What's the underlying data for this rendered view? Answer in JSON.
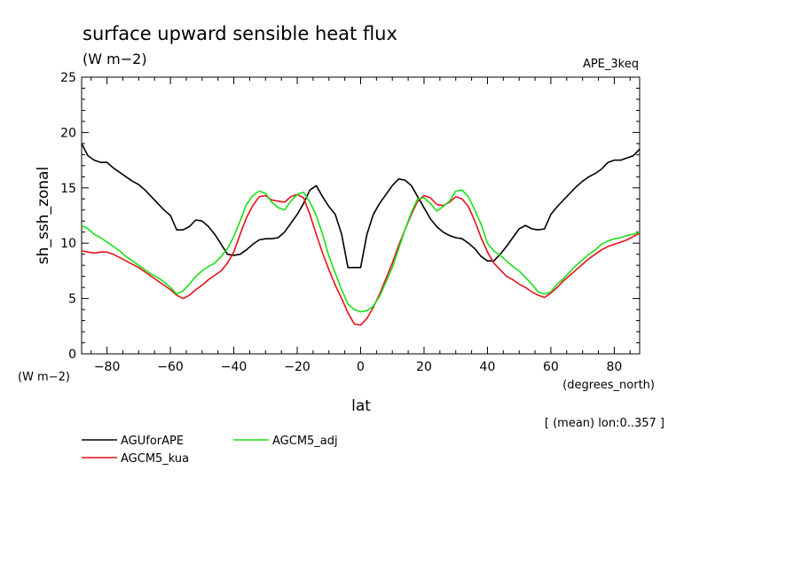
{
  "chart_data": {
    "type": "line",
    "title": "surface upward sensible heat flux",
    "subtitle": "(W m−2)",
    "dataset_label": "APE_3keq",
    "xlabel": "lat",
    "x_unit": "(degrees_north)",
    "ylabel": "sh_ssh_zonal",
    "y_unit": "(W m−2)",
    "footnote": "[ (mean) lon:0..357 ]",
    "xlim": [
      -88,
      88
    ],
    "ylim": [
      0,
      25
    ],
    "x_ticks": [
      -80,
      -60,
      -40,
      -20,
      0,
      20,
      40,
      60,
      80
    ],
    "x_tick_labels": [
      "−80",
      "−60",
      "−40",
      "−20",
      "0",
      "20",
      "40",
      "60",
      "80"
    ],
    "y_ticks": [
      0,
      5,
      10,
      15,
      20,
      25
    ],
    "y_tick_labels": [
      "0",
      "5",
      "10",
      "15",
      "20",
      "25"
    ],
    "grid": false,
    "legend_position": "bottom-left",
    "x": [
      -88,
      -86,
      -84,
      -82,
      -80,
      -78,
      -76,
      -74,
      -72,
      -70,
      -68,
      -66,
      -64,
      -62,
      -60,
      -58,
      -56,
      -54,
      -52,
      -50,
      -48,
      -46,
      -44,
      -42,
      -40,
      -38,
      -36,
      -34,
      -32,
      -30,
      -28,
      -26,
      -24,
      -22,
      -20,
      -18,
      -16,
      -14,
      -12,
      -10,
      -8,
      -6,
      -4,
      -2,
      0,
      2,
      4,
      6,
      8,
      10,
      12,
      14,
      16,
      18,
      20,
      22,
      24,
      26,
      28,
      30,
      32,
      34,
      36,
      38,
      40,
      42,
      44,
      46,
      48,
      50,
      52,
      54,
      56,
      58,
      60,
      62,
      64,
      66,
      68,
      70,
      72,
      74,
      76,
      78,
      80,
      82,
      84,
      86,
      88
    ],
    "series": [
      {
        "name": "AGUforAPE",
        "color": "#000000",
        "values": [
          19.0,
          17.9,
          17.5,
          17.3,
          17.3,
          16.8,
          16.4,
          16.0,
          15.6,
          15.3,
          14.8,
          14.2,
          13.6,
          13.0,
          12.5,
          11.2,
          11.2,
          11.5,
          12.1,
          12.0,
          11.5,
          10.8,
          9.9,
          9.0,
          8.9,
          9.0,
          9.4,
          9.9,
          10.3,
          10.4,
          10.4,
          10.5,
          11.0,
          11.8,
          12.6,
          13.6,
          14.8,
          15.2,
          14.2,
          13.3,
          12.6,
          10.8,
          7.8,
          7.8,
          7.8,
          10.8,
          12.6,
          13.6,
          14.4,
          15.2,
          15.8,
          15.7,
          15.2,
          14.2,
          13.2,
          12.2,
          11.5,
          11.0,
          10.7,
          10.5,
          10.4,
          10.0,
          9.5,
          8.8,
          8.4,
          8.4,
          9.0,
          9.7,
          10.5,
          11.3,
          11.6,
          11.3,
          11.2,
          11.3,
          12.6,
          13.3,
          13.9,
          14.5,
          15.1,
          15.6,
          16.0,
          16.3,
          16.7,
          17.3,
          17.5,
          17.5,
          17.7,
          17.9,
          18.5
        ]
      },
      {
        "name": "AGCM5_kua",
        "color": "#e8101a",
        "values": [
          9.3,
          9.2,
          9.1,
          9.2,
          9.2,
          9.0,
          8.7,
          8.4,
          8.1,
          7.8,
          7.4,
          7.0,
          6.6,
          6.2,
          5.8,
          5.3,
          5.0,
          5.3,
          5.8,
          6.2,
          6.7,
          7.1,
          7.5,
          8.2,
          9.2,
          10.8,
          12.3,
          13.4,
          14.2,
          14.3,
          13.9,
          13.8,
          13.7,
          14.2,
          14.4,
          14.1,
          12.6,
          10.8,
          9.1,
          7.6,
          6.2,
          5.0,
          3.7,
          2.7,
          2.6,
          3.2,
          4.2,
          5.4,
          6.8,
          8.2,
          9.8,
          11.2,
          12.6,
          13.8,
          14.3,
          14.1,
          13.5,
          13.4,
          13.7,
          14.2,
          14.0,
          13.3,
          12.0,
          10.5,
          9.2,
          8.2,
          7.6,
          7.0,
          6.7,
          6.3,
          6.0,
          5.6,
          5.3,
          5.1,
          5.5,
          6.0,
          6.6,
          7.1,
          7.6,
          8.1,
          8.6,
          9.0,
          9.4,
          9.7,
          9.9,
          10.1,
          10.3,
          10.6,
          10.9
        ]
      },
      {
        "name": "AGCM5_adj",
        "color": "#19e019",
        "values": [
          11.6,
          11.3,
          10.8,
          10.5,
          10.1,
          9.7,
          9.3,
          8.8,
          8.4,
          8.0,
          7.6,
          7.2,
          6.9,
          6.5,
          6.0,
          5.4,
          5.7,
          6.3,
          7.0,
          7.5,
          7.9,
          8.2,
          8.8,
          9.5,
          10.6,
          12.0,
          13.5,
          14.3,
          14.7,
          14.5,
          13.7,
          13.2,
          13.0,
          13.8,
          14.4,
          14.6,
          13.7,
          12.5,
          10.8,
          8.8,
          7.3,
          5.8,
          4.5,
          4.0,
          3.8,
          3.9,
          4.3,
          5.2,
          6.5,
          7.8,
          9.5,
          11.2,
          12.8,
          14.0,
          14.1,
          13.6,
          12.9,
          13.3,
          13.8,
          14.7,
          14.8,
          14.2,
          13.0,
          11.7,
          10.0,
          9.3,
          8.9,
          8.4,
          7.9,
          7.5,
          6.9,
          6.3,
          5.6,
          5.4,
          5.6,
          6.3,
          6.8,
          7.4,
          8.0,
          8.5,
          9.0,
          9.4,
          9.9,
          10.2,
          10.4,
          10.5,
          10.7,
          10.8,
          11.0
        ]
      }
    ]
  }
}
